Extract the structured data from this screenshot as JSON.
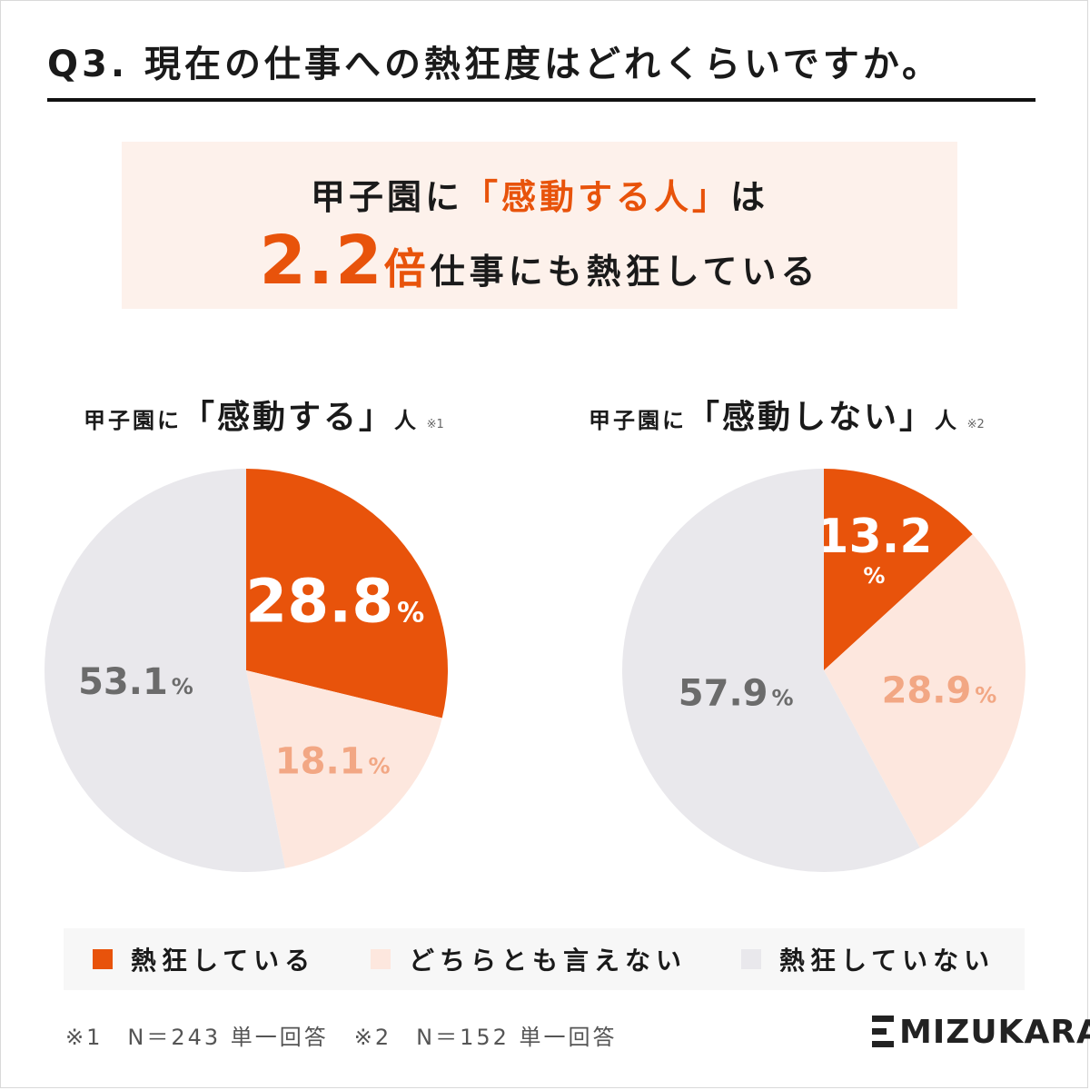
{
  "header": {
    "title": "Q3. 現在の仕事への熱狂度はどれくらいですか。"
  },
  "banner": {
    "line1_pre": "甲子園に",
    "line1_accent": "「感動する人」",
    "line1_post": "は",
    "ratio": "2.2",
    "ratio_unit": "倍",
    "line2_post": "仕事にも熱狂している"
  },
  "colors": {
    "enthusiastic": "#e8530b",
    "neutral": "#fde7de",
    "not": "#e9e8ec",
    "neutral_label": "#f2a784",
    "not_label": "#6b6b6b"
  },
  "chart_data": [
    {
      "type": "pie",
      "title_pre": "甲子園に",
      "title_main": "「感動する」",
      "title_post": "人",
      "title_note": "※1",
      "categories": [
        "熱狂している",
        "どちらとも言えない",
        "熱狂していない"
      ],
      "values": [
        28.8,
        18.1,
        53.1
      ],
      "value_labels": [
        "28.8",
        "18.1",
        "53.1"
      ],
      "unit": "%"
    },
    {
      "type": "pie",
      "title_pre": "甲子園に",
      "title_main": "「感動しない」",
      "title_post": "人",
      "title_note": "※2",
      "categories": [
        "熱狂している",
        "どちらとも言えない",
        "熱狂していない"
      ],
      "values": [
        13.2,
        28.9,
        57.9
      ],
      "value_labels": [
        "13.2",
        "28.9",
        "57.9"
      ],
      "unit": "%"
    }
  ],
  "legend": [
    {
      "label": "熱狂している",
      "color": "#e8530b"
    },
    {
      "label": "どちらとも言えない",
      "color": "#fde7de"
    },
    {
      "label": "熱狂していない",
      "color": "#e9e8ec"
    }
  ],
  "footnotes": [
    "※1　N＝243 単一回答",
    "※2　N＝152 単一回答"
  ],
  "brand": {
    "logo_text": "MIZUKARA"
  }
}
